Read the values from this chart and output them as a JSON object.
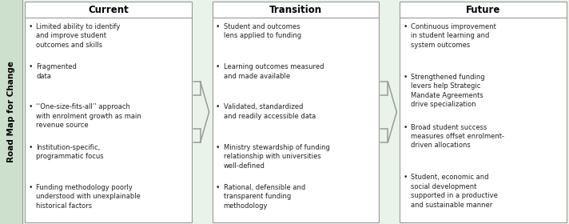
{
  "title": "Road Map for Change",
  "title_bg": "#cde0cd",
  "main_bg": "#eaf3ea",
  "box_bg": "#ffffff",
  "box_border": "#999999",
  "arrow_color": "#999999",
  "header_color": "#000000",
  "text_color": "#222222",
  "columns": [
    {
      "header": "Current",
      "items": [
        "Limited ability to identify\nand improve student\noutcomes and skills",
        "Fragmented\ndata",
        "‘‘One-size-fits-all’’ approach\nwith enrolment growth as main\nrevenue source",
        "Institution-specific,\nprogrammatic focus",
        "Funding methodology poorly\nunderstood with unexplainable\nhistorical factors"
      ]
    },
    {
      "header": "Transition",
      "items": [
        "Student and outcomes\nlens applied to funding",
        "Learning outcomes measured\nand made available",
        "Validated, standardized\nand readily accessible data",
        "Ministry stewardship of funding\nrelationship with universities\nwell-defined",
        "Rational, defensible and\ntransparent funding\nmethodology"
      ]
    },
    {
      "header": "Future",
      "items": [
        "Continuous improvement\nin student learning and\nsystem outcomes",
        "Strengthened funding\nlevers help Strategic\nMandate Agreements\ndrive specialization",
        "Broad student success\nmeasures offset enrolment-\ndriven allocations",
        "Student, economic and\nsocial development\nsupported in a productive\nand sustainable manner"
      ]
    }
  ]
}
